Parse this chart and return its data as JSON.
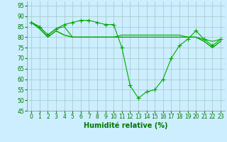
{
  "xlabel": "Humidité relative (%)",
  "bg_color": "#cceeff",
  "grid_color": "#aacccc",
  "line_color": "#00aa00",
  "marker_color": "#00aa00",
  "xlim": [
    -0.5,
    23.5
  ],
  "ylim": [
    45,
    97
  ],
  "yticks": [
    45,
    50,
    55,
    60,
    65,
    70,
    75,
    80,
    85,
    90,
    95
  ],
  "xticks": [
    0,
    1,
    2,
    3,
    4,
    5,
    6,
    7,
    8,
    9,
    10,
    11,
    12,
    13,
    14,
    15,
    16,
    17,
    18,
    19,
    20,
    21,
    22,
    23
  ],
  "series": [
    [
      87,
      85,
      81,
      84,
      86,
      87,
      88,
      88,
      87,
      86,
      86,
      75,
      57,
      51,
      54,
      55,
      60,
      70,
      76,
      79,
      83,
      79,
      76,
      79
    ],
    [
      87,
      84,
      80,
      83,
      81,
      80,
      80,
      80,
      80,
      80,
      80,
      81,
      81,
      81,
      81,
      81,
      81,
      81,
      81,
      80,
      80,
      79,
      78,
      79
    ],
    [
      87,
      85,
      81,
      84,
      85,
      80,
      80,
      80,
      80,
      80,
      80,
      80,
      80,
      80,
      80,
      80,
      80,
      80,
      80,
      80,
      80,
      78,
      75,
      78
    ],
    [
      87,
      84,
      80,
      83,
      81,
      80,
      80,
      80,
      80,
      80,
      80,
      80,
      80,
      80,
      80,
      80,
      80,
      80,
      80,
      80,
      80,
      78,
      75,
      78
    ]
  ],
  "xlabel_fontsize": 7,
  "tick_fontsize": 5.5,
  "marker_size": 3,
  "linewidth": 0.8
}
